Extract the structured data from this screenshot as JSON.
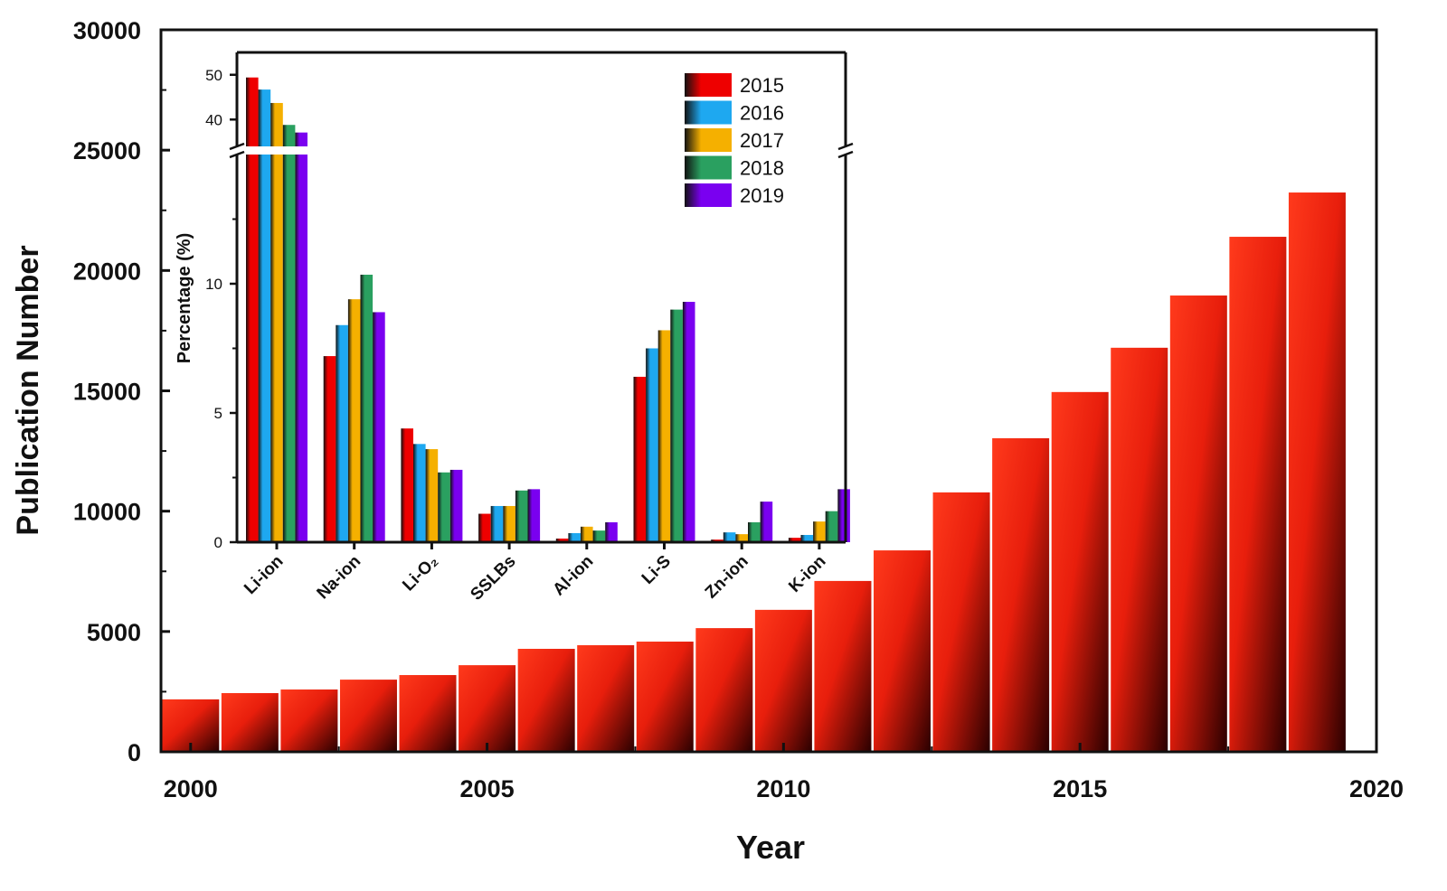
{
  "chart_data": [
    {
      "type": "bar",
      "title": "",
      "xlabel": "Year",
      "ylabel": "Publication Number",
      "xlim": [
        1999.5,
        2020
      ],
      "ylim": [
        0,
        30000
      ],
      "xticks": [
        "2000",
        "2005",
        "2010",
        "2015",
        "2020"
      ],
      "yticks": [
        "0",
        "5000",
        "10000",
        "15000",
        "20000",
        "25000",
        "30000"
      ],
      "categories": [
        2000,
        2001,
        2002,
        2003,
        2004,
        2005,
        2006,
        2007,
        2008,
        2009,
        2010,
        2011,
        2012,
        2013,
        2014,
        2015,
        2016,
        2017,
        2018,
        2019
      ],
      "values": [
        2180,
        2440,
        2590,
        3000,
        3190,
        3600,
        4280,
        4430,
        4580,
        5140,
        5900,
        7100,
        8370,
        10780,
        13030,
        14950,
        16790,
        18960,
        21400,
        23240
      ],
      "color": "#ff2a10",
      "grid": false
    },
    {
      "type": "bar",
      "title": "",
      "xlabel": "",
      "ylabel": "Percentage (%)",
      "ylim_lower": [
        0,
        15
      ],
      "ylim_upper": [
        34,
        55
      ],
      "axis_break": true,
      "yticks_lower": [
        "0",
        "5",
        "10"
      ],
      "yticks_upper": [
        "40",
        "50"
      ],
      "categories": [
        "Li-ion",
        "Na-ion",
        "Li-O₂",
        "SSLBs",
        "Al-ion",
        "Li-S",
        "Zn-ion",
        "K-ion"
      ],
      "legend_position": "top-right",
      "series": [
        {
          "name": "2015",
          "color": "#ee0000",
          "values": [
            49.4,
            7.2,
            4.4,
            1.1,
            0.14,
            6.4,
            0.1,
            0.17
          ]
        },
        {
          "name": "2016",
          "color": "#1ea8f0",
          "values": [
            46.7,
            8.4,
            3.8,
            1.4,
            0.35,
            7.5,
            0.38,
            0.28
          ]
        },
        {
          "name": "2017",
          "color": "#f5b000",
          "values": [
            43.7,
            9.4,
            3.6,
            1.4,
            0.6,
            8.2,
            0.31,
            0.8
          ]
        },
        {
          "name": "2018",
          "color": "#2aa060",
          "values": [
            38.8,
            10.35,
            2.7,
            2.0,
            0.45,
            9.0,
            0.77,
            1.2
          ]
        },
        {
          "name": "2019",
          "color": "#7a00f0",
          "values": [
            37.1,
            8.9,
            2.8,
            2.05,
            0.77,
            9.3,
            1.57,
            2.05
          ]
        }
      ]
    }
  ]
}
